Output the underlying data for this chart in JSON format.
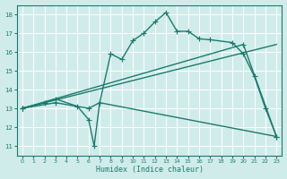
{
  "line1_x": [
    0,
    2,
    3,
    5,
    6,
    6.5,
    7,
    8,
    9,
    10,
    11,
    12,
    13,
    14,
    15,
    16,
    17,
    19,
    20,
    21,
    22,
    23
  ],
  "line1_y": [
    13,
    13.3,
    13.5,
    13.1,
    12.4,
    11.0,
    13.3,
    15.9,
    15.6,
    16.6,
    17.0,
    17.6,
    18.1,
    17.1,
    17.1,
    16.7,
    16.65,
    16.5,
    15.9,
    14.7,
    13.0,
    11.5
  ],
  "line2_x": [
    0,
    20,
    23
  ],
  "line2_y": [
    13,
    16.4,
    11.5
  ],
  "line3_x": [
    0,
    23
  ],
  "line3_y": [
    13,
    16.4
  ],
  "line4_x": [
    0,
    3,
    6,
    7,
    23
  ],
  "line4_y": [
    13,
    13.3,
    13.0,
    13.3,
    11.5
  ],
  "line_color": "#1a7a6e",
  "bg_color": "#d0ecea",
  "grid_color": "#b8ddd8",
  "xlabel": "Humidex (Indice chaleur)",
  "xlim": [
    -0.5,
    23.5
  ],
  "ylim": [
    10.5,
    18.5
  ],
  "yticks": [
    11,
    12,
    13,
    14,
    15,
    16,
    17,
    18
  ],
  "xticks": [
    0,
    1,
    2,
    3,
    4,
    5,
    6,
    7,
    8,
    9,
    10,
    11,
    12,
    13,
    14,
    15,
    16,
    17,
    18,
    19,
    20,
    21,
    22,
    23
  ]
}
